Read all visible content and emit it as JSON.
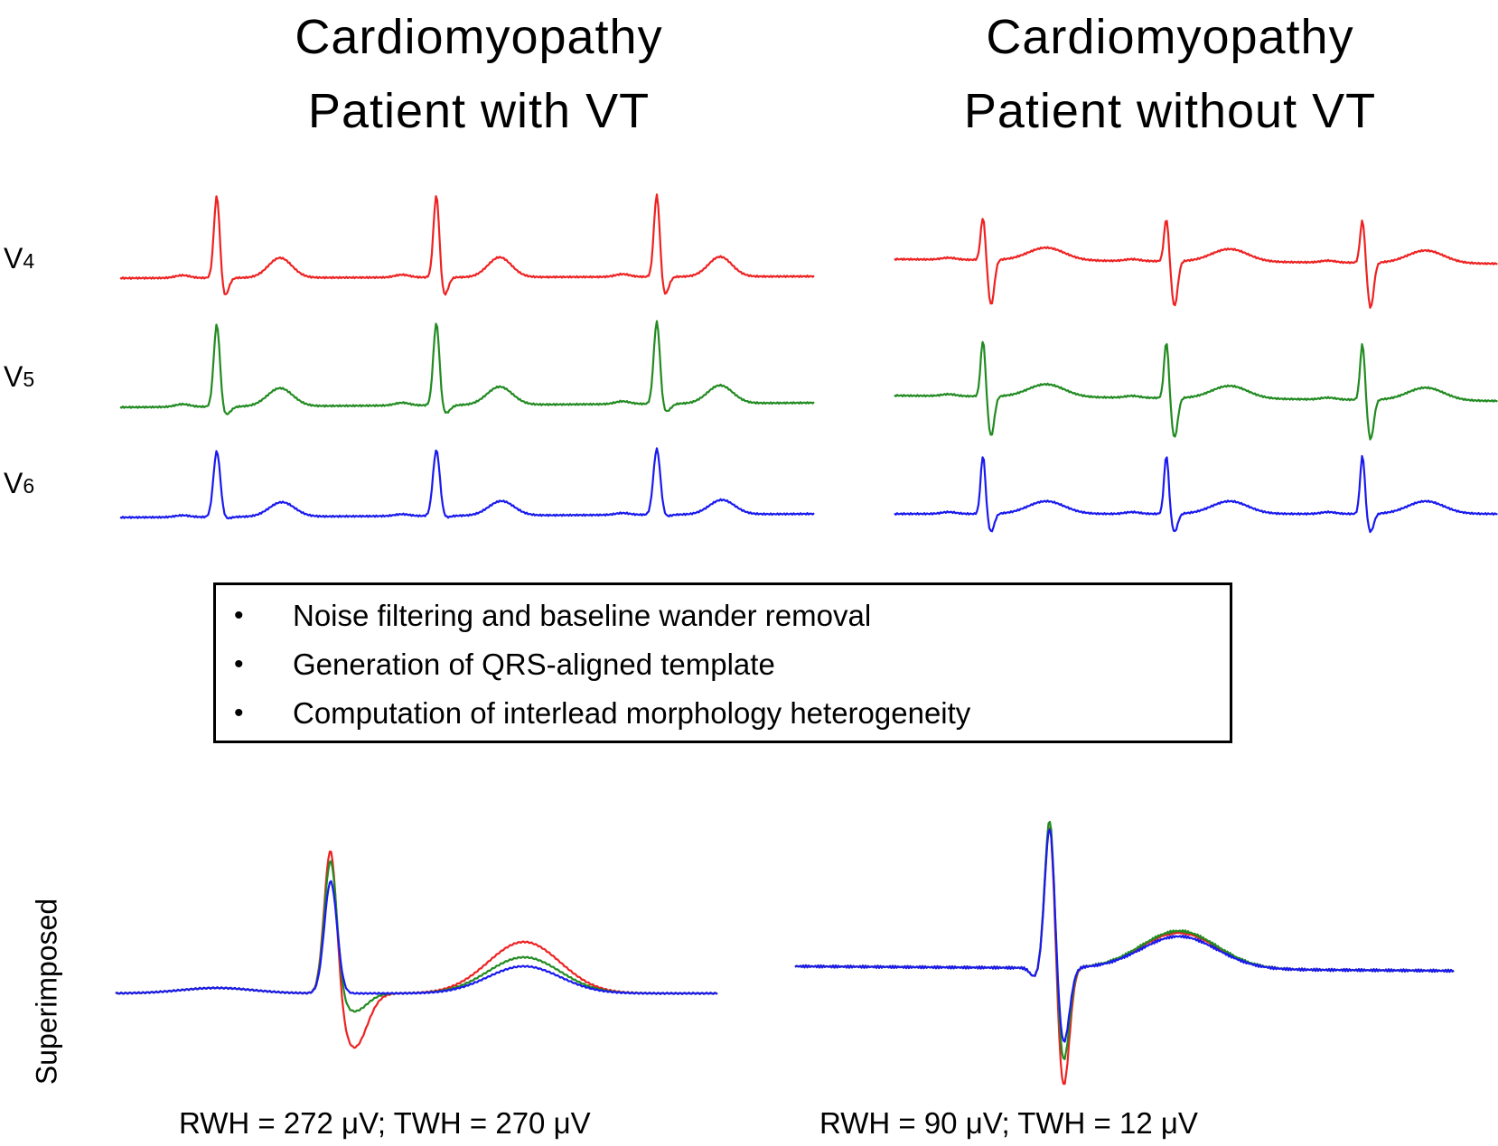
{
  "titles": {
    "left": {
      "line1": "Cardiomyopathy",
      "line2": "Patient with VT"
    },
    "right": {
      "line1": "Cardiomyopathy",
      "line2": "Patient without VT"
    }
  },
  "leads": [
    {
      "name": "V",
      "sub": "4",
      "color": "#ee2222"
    },
    {
      "name": "V",
      "sub": "5",
      "color": "#228b22"
    },
    {
      "name": "V",
      "sub": "6",
      "color": "#1a1aee"
    }
  ],
  "steps": [
    "Noise filtering and baseline wander removal",
    "Generation of QRS-aligned template",
    "Computation of interlead morphology heterogeneity"
  ],
  "bullet": "•",
  "superimposed_label": "Superimposed",
  "measurements": {
    "left": "RWH = 272 μV; TWH = 270 μV",
    "right": "RWH = 90 μV; TWH = 12 μV"
  }
}
